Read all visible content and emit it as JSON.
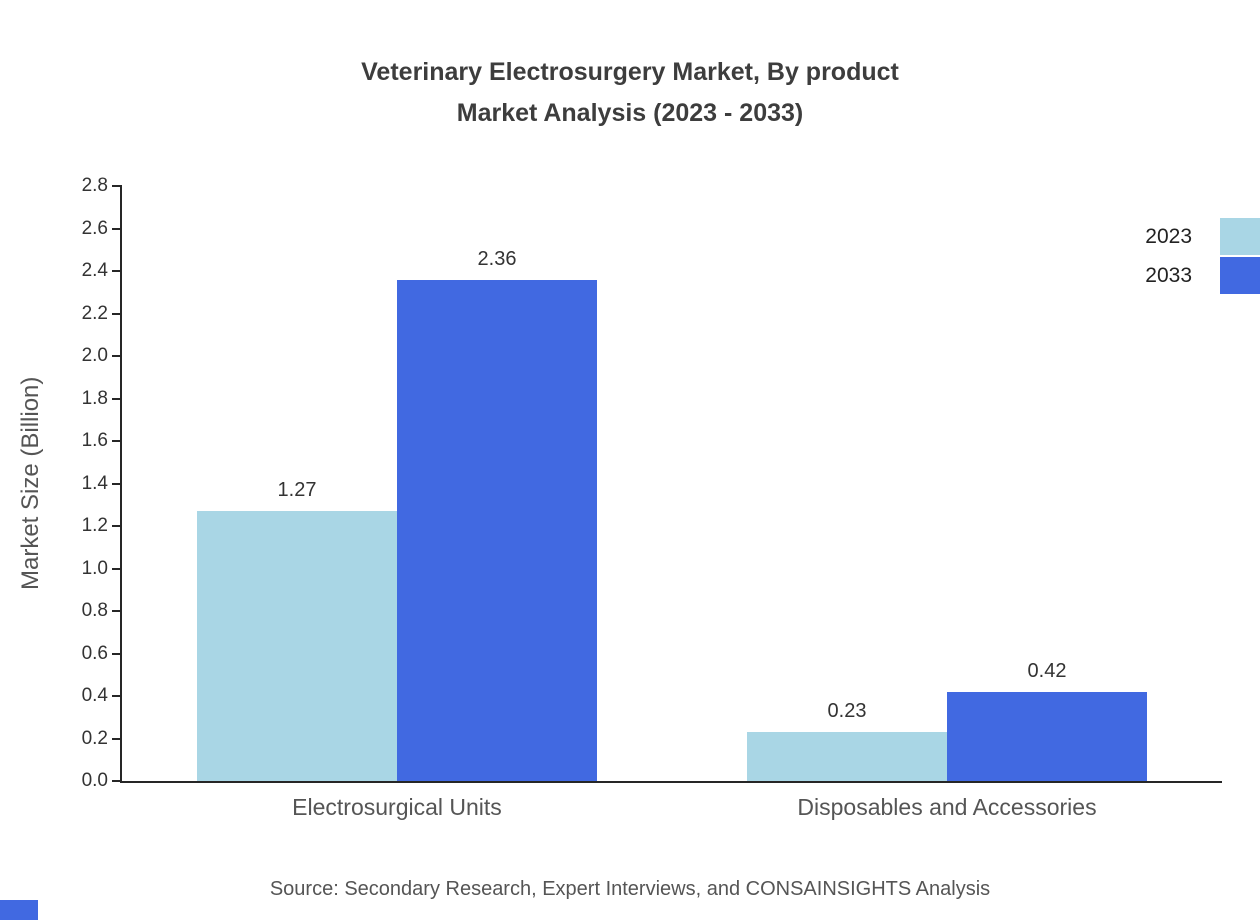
{
  "title": {
    "line1": "Veterinary Electrosurgery Market, By product",
    "line2": "Market Analysis (2023 - 2033)"
  },
  "source": "Source: Secondary Research, Expert Interviews, and CONSAINSIGHTS Analysis",
  "colors": {
    "series_2023": "#a9d6e5",
    "series_2033": "#4169e1",
    "axis": "#262626",
    "text_primary": "#333333",
    "text_secondary": "#555555"
  },
  "chart_data": {
    "type": "bar",
    "title": "Veterinary Electrosurgery Market, By product Market Analysis (2023 - 2033)",
    "categories": [
      "Electrosurgical Units",
      "Disposables and Accessories"
    ],
    "series": [
      {
        "name": "2023",
        "color": "#a9d6e5",
        "values": [
          1.27,
          0.23
        ]
      },
      {
        "name": "2033",
        "color": "#4169e1",
        "values": [
          2.36,
          0.42
        ]
      }
    ],
    "xlabel": "",
    "ylabel": "Market Size (Billion)",
    "ylim": [
      0,
      2.8
    ],
    "ytick_step": 0.2,
    "grid": false,
    "legend_position": "top-right",
    "value_labels": true
  }
}
